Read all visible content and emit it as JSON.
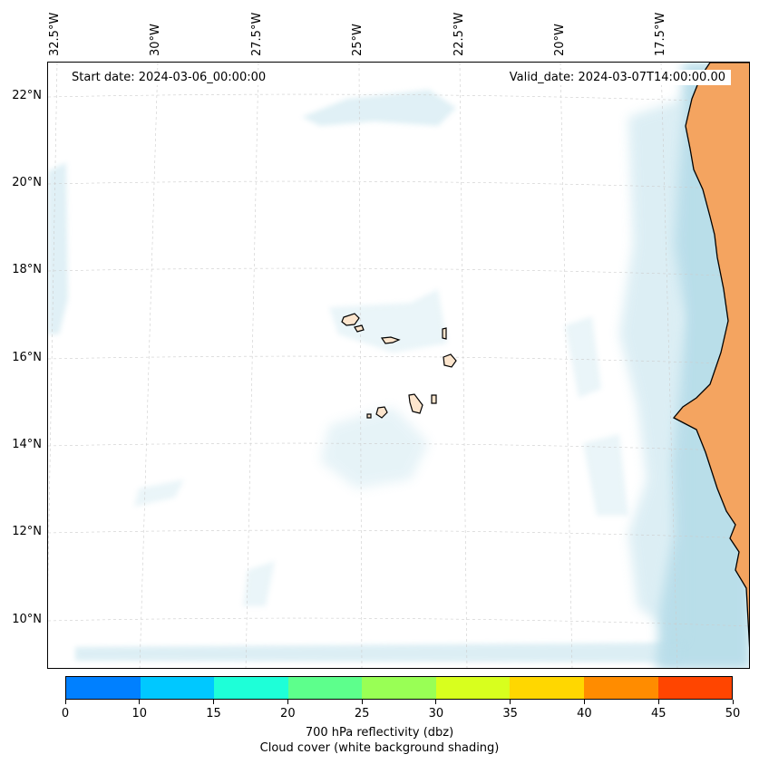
{
  "map": {
    "start_date": "Start date: 2024-03-06_00:00:00",
    "valid_date": "Valid_date: 2024-03-07T14:00:00.00",
    "lon_labels": [
      "32.5°W",
      "30°W",
      "27.5°W",
      "25°W",
      "22.5°W",
      "20°W",
      "17.5°W"
    ],
    "lat_labels": [
      "22°N",
      "20°N",
      "18°N",
      "16°N",
      "14°N",
      "12°N",
      "10°N"
    ],
    "colors": {
      "land": "#f4a460",
      "island_land": "#fce5cd",
      "cloud": "#add8e6",
      "coastline": "#000000",
      "gridline": "#cccccc"
    }
  },
  "colorbar": {
    "ticks": [
      "0",
      "10",
      "15",
      "20",
      "25",
      "30",
      "35",
      "40",
      "45",
      "50"
    ],
    "colors": [
      "#0080ff",
      "#00c8ff",
      "#1effd8",
      "#5dff8c",
      "#99ff55",
      "#d8ff1e",
      "#ffd700",
      "#ff8c00",
      "#ff4500"
    ],
    "label_line1": "700 hPa reflectivity (dbz)",
    "label_line2": "Cloud cover (white background shading)"
  }
}
